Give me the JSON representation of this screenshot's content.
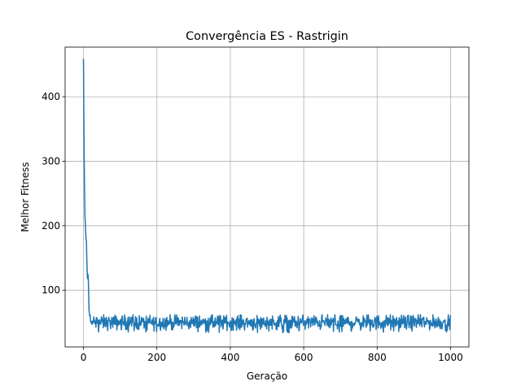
{
  "chart_data": {
    "type": "line",
    "title": "Convergência ES - Rastrigin",
    "xlabel": "Geração",
    "ylabel": "Melhor Fitness",
    "xlim": [
      -50,
      1050
    ],
    "ylim": [
      12,
      477
    ],
    "xticks": [
      0,
      200,
      400,
      600,
      800,
      1000
    ],
    "yticks": [
      100,
      200,
      300,
      400
    ],
    "grid": true,
    "color": "#1f77b4",
    "series": [
      {
        "head_x": [
          0,
          1,
          2,
          3,
          4,
          5,
          6,
          7,
          8,
          9,
          10,
          11,
          12,
          13,
          14,
          15,
          16,
          17,
          18,
          19,
          20,
          21,
          22,
          23,
          24,
          25
        ],
        "head_y": [
          458,
          370,
          300,
          250,
          215,
          203,
          190,
          178,
          177,
          150,
          130,
          118,
          125,
          120,
          100,
          70,
          65,
          60,
          62,
          55,
          50,
          52,
          48,
          50,
          47,
          52
        ],
        "tail_range": [
          26,
          1000
        ],
        "tail_mean": 50,
        "tail_min": 34,
        "tail_max": 62
      }
    ]
  }
}
